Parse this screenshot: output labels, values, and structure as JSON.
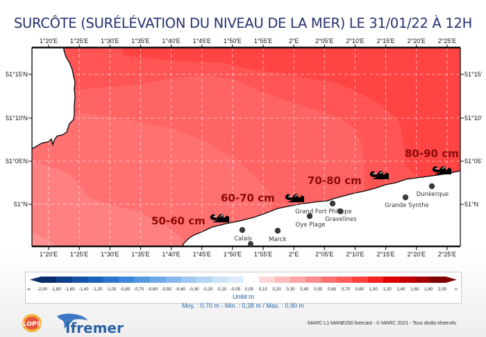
{
  "title": "SURCÔTE (SURÉLÉVATION DU NIVEAU DE LA MER) LE 31/01/22 À 12H",
  "map": {
    "longitude_ticks": [
      "1°20'E",
      "1°25'E",
      "1°30'E",
      "1°35'E",
      "1°40'E",
      "1°45'E",
      "1°50'E",
      "1°55'E",
      "2°E",
      "2°05'E",
      "2°10'E",
      "2°15'E",
      "2°20'E",
      "2°25'E"
    ],
    "latitude_ticks_left": [
      "51°15'N",
      "51°10'N",
      "51°05'N",
      "51°N"
    ],
    "latitude_ticks_right": [
      "51°15'",
      "51°10'",
      "51°05'",
      "51°N"
    ],
    "zones": [
      {
        "label": "50-60 cm",
        "icon": "wave-icon"
      },
      {
        "label": "60-70 cm",
        "icon": "wave-icon"
      },
      {
        "label": "70-80 cm",
        "icon": "wave-icon"
      },
      {
        "label": "80-90 cm",
        "icon": "wave-icon"
      }
    ],
    "towns": [
      {
        "name": "Calais"
      },
      {
        "name": "Marck"
      },
      {
        "name": "Oye Plage"
      },
      {
        "name": "Grand Fort Philippe"
      },
      {
        "name": "Gravelines"
      },
      {
        "name": "Grande Synthe"
      },
      {
        "name": "Dunkerque"
      }
    ],
    "surge_colors": {
      "0.5-0.6": "#ff8c8c",
      "0.6-0.7": "#ff7272",
      "0.7-0.8": "#ff5a5a",
      "0.8-0.9": "#ff4040"
    }
  },
  "legend": {
    "ticks": [
      "-∞",
      "-2,00",
      "-1,80",
      "-1,60",
      "-1,40",
      "-1,20",
      "-1,00",
      "-0,80",
      "-0,70",
      "-0,60",
      "-0,50",
      "-0,40",
      "-0,30",
      "-0,20",
      "-0,10",
      "-0,05",
      "0,05",
      "0,10",
      "0,20",
      "0,30",
      "0,40",
      "0,50",
      "0,60",
      "0,70",
      "0,80",
      "1,00",
      "1,20",
      "1,40",
      "1,60",
      "1,80",
      "2,00",
      "∞"
    ],
    "colors": [
      "#0b2e6b",
      "#0d3f8a",
      "#1552a8",
      "#1a62c0",
      "#2a74d0",
      "#3b86dc",
      "#5598e2",
      "#6ea8e6",
      "#86b8ec",
      "#a0c8f0",
      "#b6d6f4",
      "#cce3f8",
      "#ddebfa",
      "#ffffff",
      "#ffd6d6",
      "#ffbcbc",
      "#ffa4a4",
      "#ff8c8c",
      "#ff7272",
      "#ff5a5a",
      "#ff4040",
      "#f52020",
      "#e00000",
      "#c40000",
      "#a50000",
      "#7e0000"
    ],
    "unit": "Unité:m"
  },
  "stats": "Moy. : 0,70 m   -   Min. : 0,38 m / Max. : 0,90 m",
  "copyright": "MARC L1 MANE250 forecast - © MARC 2021 - Tous droits réservés",
  "logos": {
    "lops": "LOPS",
    "ifremer": "Ifremer"
  }
}
